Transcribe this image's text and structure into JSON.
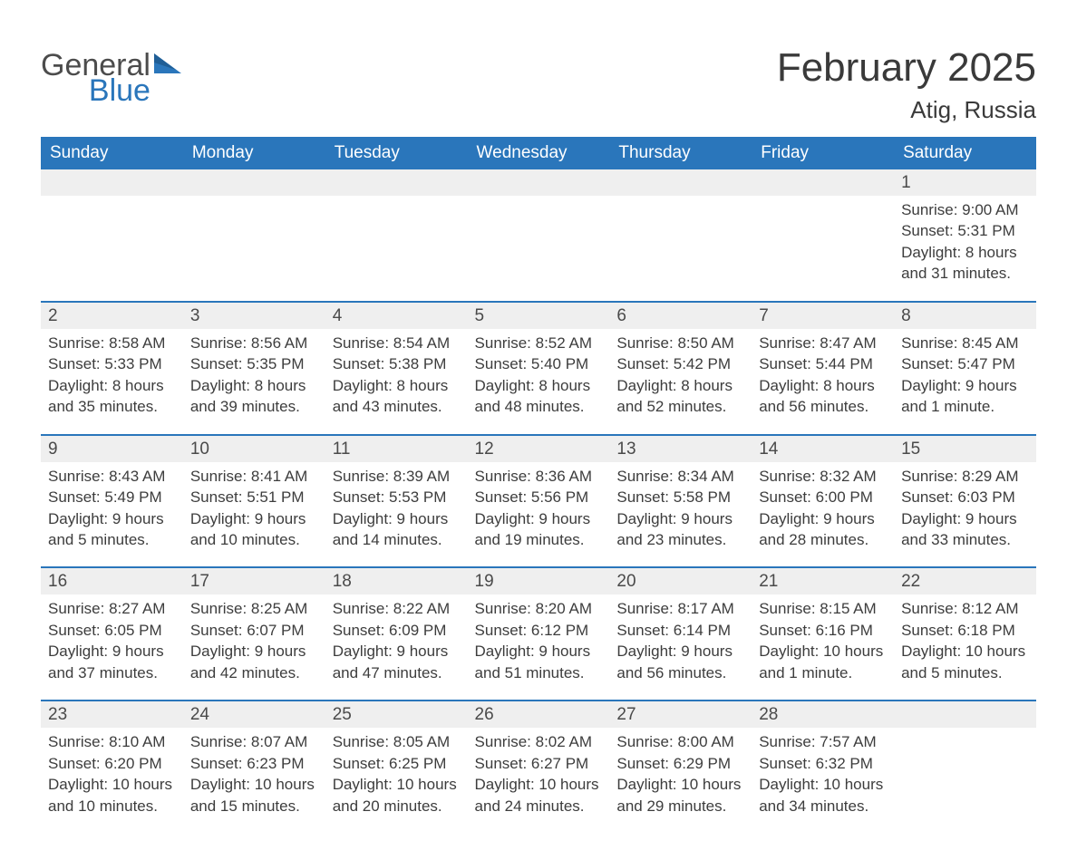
{
  "logo": {
    "word1": "General",
    "word2": "Blue",
    "color_primary": "#2a76bb",
    "color_text": "#4c4c4c"
  },
  "title": "February 2025",
  "location": "Atig, Russia",
  "header_bg": "#2a76bb",
  "header_fg": "#ffffff",
  "daynum_bg": "#efefef",
  "row_border": "#2a76bb",
  "weekdays": [
    "Sunday",
    "Monday",
    "Tuesday",
    "Wednesday",
    "Thursday",
    "Friday",
    "Saturday"
  ],
  "first_weekday_index": 6,
  "days": [
    {
      "n": 1,
      "sunrise": "9:00 AM",
      "sunset": "5:31 PM",
      "daylight": "8 hours and 31 minutes."
    },
    {
      "n": 2,
      "sunrise": "8:58 AM",
      "sunset": "5:33 PM",
      "daylight": "8 hours and 35 minutes."
    },
    {
      "n": 3,
      "sunrise": "8:56 AM",
      "sunset": "5:35 PM",
      "daylight": "8 hours and 39 minutes."
    },
    {
      "n": 4,
      "sunrise": "8:54 AM",
      "sunset": "5:38 PM",
      "daylight": "8 hours and 43 minutes."
    },
    {
      "n": 5,
      "sunrise": "8:52 AM",
      "sunset": "5:40 PM",
      "daylight": "8 hours and 48 minutes."
    },
    {
      "n": 6,
      "sunrise": "8:50 AM",
      "sunset": "5:42 PM",
      "daylight": "8 hours and 52 minutes."
    },
    {
      "n": 7,
      "sunrise": "8:47 AM",
      "sunset": "5:44 PM",
      "daylight": "8 hours and 56 minutes."
    },
    {
      "n": 8,
      "sunrise": "8:45 AM",
      "sunset": "5:47 PM",
      "daylight": "9 hours and 1 minute."
    },
    {
      "n": 9,
      "sunrise": "8:43 AM",
      "sunset": "5:49 PM",
      "daylight": "9 hours and 5 minutes."
    },
    {
      "n": 10,
      "sunrise": "8:41 AM",
      "sunset": "5:51 PM",
      "daylight": "9 hours and 10 minutes."
    },
    {
      "n": 11,
      "sunrise": "8:39 AM",
      "sunset": "5:53 PM",
      "daylight": "9 hours and 14 minutes."
    },
    {
      "n": 12,
      "sunrise": "8:36 AM",
      "sunset": "5:56 PM",
      "daylight": "9 hours and 19 minutes."
    },
    {
      "n": 13,
      "sunrise": "8:34 AM",
      "sunset": "5:58 PM",
      "daylight": "9 hours and 23 minutes."
    },
    {
      "n": 14,
      "sunrise": "8:32 AM",
      "sunset": "6:00 PM",
      "daylight": "9 hours and 28 minutes."
    },
    {
      "n": 15,
      "sunrise": "8:29 AM",
      "sunset": "6:03 PM",
      "daylight": "9 hours and 33 minutes."
    },
    {
      "n": 16,
      "sunrise": "8:27 AM",
      "sunset": "6:05 PM",
      "daylight": "9 hours and 37 minutes."
    },
    {
      "n": 17,
      "sunrise": "8:25 AM",
      "sunset": "6:07 PM",
      "daylight": "9 hours and 42 minutes."
    },
    {
      "n": 18,
      "sunrise": "8:22 AM",
      "sunset": "6:09 PM",
      "daylight": "9 hours and 47 minutes."
    },
    {
      "n": 19,
      "sunrise": "8:20 AM",
      "sunset": "6:12 PM",
      "daylight": "9 hours and 51 minutes."
    },
    {
      "n": 20,
      "sunrise": "8:17 AM",
      "sunset": "6:14 PM",
      "daylight": "9 hours and 56 minutes."
    },
    {
      "n": 21,
      "sunrise": "8:15 AM",
      "sunset": "6:16 PM",
      "daylight": "10 hours and 1 minute."
    },
    {
      "n": 22,
      "sunrise": "8:12 AM",
      "sunset": "6:18 PM",
      "daylight": "10 hours and 5 minutes."
    },
    {
      "n": 23,
      "sunrise": "8:10 AM",
      "sunset": "6:20 PM",
      "daylight": "10 hours and 10 minutes."
    },
    {
      "n": 24,
      "sunrise": "8:07 AM",
      "sunset": "6:23 PM",
      "daylight": "10 hours and 15 minutes."
    },
    {
      "n": 25,
      "sunrise": "8:05 AM",
      "sunset": "6:25 PM",
      "daylight": "10 hours and 20 minutes."
    },
    {
      "n": 26,
      "sunrise": "8:02 AM",
      "sunset": "6:27 PM",
      "daylight": "10 hours and 24 minutes."
    },
    {
      "n": 27,
      "sunrise": "8:00 AM",
      "sunset": "6:29 PM",
      "daylight": "10 hours and 29 minutes."
    },
    {
      "n": 28,
      "sunrise": "7:57 AM",
      "sunset": "6:32 PM",
      "daylight": "10 hours and 34 minutes."
    }
  ],
  "labels": {
    "sunrise": "Sunrise:",
    "sunset": "Sunset:",
    "daylight": "Daylight:"
  }
}
